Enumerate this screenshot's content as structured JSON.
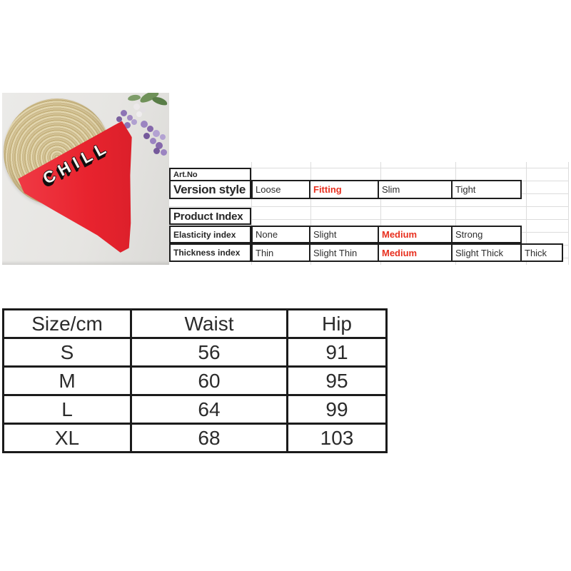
{
  "photo": {
    "graphic_text": "CHILL"
  },
  "spec_sheet": {
    "art_no_label": "Art.No",
    "version": {
      "label": "Version style",
      "options": [
        "Loose",
        "Fitting",
        "Slim",
        "Tight"
      ],
      "highlighted": "Fitting"
    },
    "section_title": "Product Index",
    "elasticity": {
      "label": "Elasticity index",
      "options": [
        "None",
        "Slight",
        "Medium",
        "Strong"
      ],
      "highlighted": "Medium"
    },
    "thickness": {
      "label": "Thickness index",
      "options": [
        "Thin",
        "Slight Thin",
        "Medium",
        "Slight Thick",
        "Thick"
      ],
      "highlighted": "Medium"
    }
  },
  "size_chart": {
    "headers": [
      "Size/cm",
      "Waist",
      "Hip"
    ],
    "rows": [
      {
        "size": "S",
        "waist": "56",
        "hip": "91"
      },
      {
        "size": "M",
        "waist": "60",
        "hip": "95"
      },
      {
        "size": "L",
        "waist": "64",
        "hip": "99"
      },
      {
        "size": "XL",
        "waist": "68",
        "hip": "103"
      }
    ]
  },
  "colors": {
    "highlight_red": "#e8301f",
    "panty_red": "#e8232e",
    "straw": "#d8c89e",
    "lavender": "#9a82c0",
    "photo_bg": "#e6e5e2",
    "table_border": "#1d1d1d",
    "grid_line": "#dcdcdc"
  }
}
